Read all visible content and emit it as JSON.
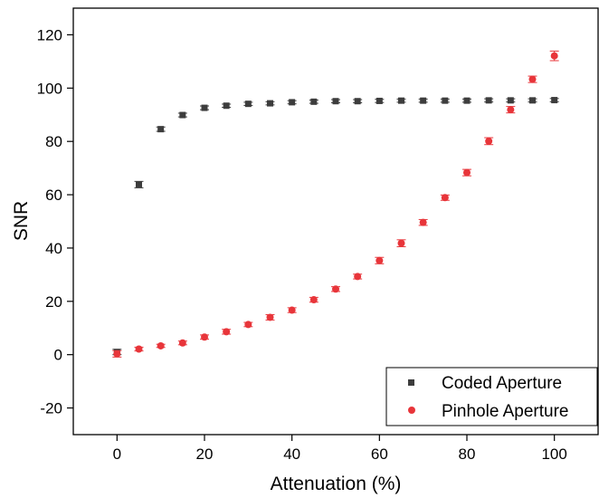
{
  "chart_data": {
    "type": "scatter",
    "title": "",
    "xlabel": "Attenuation (%)",
    "ylabel": "SNR",
    "xlim": [
      -10,
      110
    ],
    "ylim": [
      -30,
      130
    ],
    "x_ticks": [
      0,
      20,
      40,
      60,
      80,
      100
    ],
    "y_ticks": [
      -20,
      0,
      20,
      40,
      60,
      80,
      100,
      120
    ],
    "grid": false,
    "legend_position": "bottom-right",
    "series": [
      {
        "name": "Coded Aperture",
        "marker": "square",
        "color": "#3d3d3d",
        "x": [
          0,
          5,
          10,
          15,
          20,
          25,
          30,
          35,
          40,
          45,
          50,
          55,
          60,
          65,
          70,
          75,
          80,
          85,
          90,
          95,
          100
        ],
        "y": [
          1,
          63.8,
          84.6,
          89.9,
          92.6,
          93.4,
          94.1,
          94.3,
          94.7,
          94.9,
          95.1,
          95.1,
          95.2,
          95.3,
          95.3,
          95.3,
          95.3,
          95.4,
          95.4,
          95.4,
          95.5
        ],
        "error": [
          1,
          1.2,
          0.8,
          0.7,
          0.7,
          0.6,
          0.6,
          0.6,
          0.6,
          0.6,
          0.6,
          0.6,
          0.6,
          0.6,
          0.6,
          0.6,
          0.6,
          0.6,
          0.6,
          0.6,
          0.6
        ]
      },
      {
        "name": "Pinhole Aperture",
        "marker": "circle",
        "color": "#e8353a",
        "x": [
          0,
          5,
          10,
          15,
          20,
          25,
          30,
          35,
          40,
          45,
          50,
          55,
          60,
          65,
          70,
          75,
          80,
          85,
          90,
          95,
          100
        ],
        "y": [
          0.3,
          2.1,
          3.3,
          4.4,
          6.6,
          8.6,
          11.3,
          14,
          16.7,
          20.6,
          24.6,
          29.3,
          35.3,
          41.8,
          49.6,
          58.9,
          68.3,
          80.1,
          91.9,
          103.3,
          112.1
        ],
        "error": [
          1.2,
          0.7,
          0.6,
          0.7,
          0.8,
          0.9,
          0.8,
          1,
          0.9,
          0.9,
          0.9,
          0.9,
          1.2,
          1.3,
          1.1,
          1,
          1.2,
          1.3,
          1.2,
          1.2,
          1.8
        ]
      }
    ]
  }
}
